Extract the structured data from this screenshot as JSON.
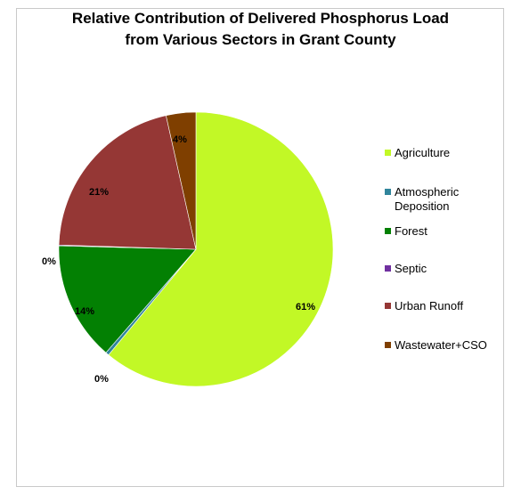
{
  "chart_data": {
    "type": "pie",
    "title_lines": [
      "Relative Contribution of Delivered Phosphorus Load",
      "from Various Sectors in Grant County"
    ],
    "start_angle_deg": 0,
    "direction": "clockwise",
    "legend_position": "right",
    "slices": [
      {
        "name": "Agriculture",
        "value": 61.0,
        "label": "61%",
        "color": "#c2f826"
      },
      {
        "name": "Atmospheric Deposition",
        "value": 0.4,
        "label": "0%",
        "color": "#31859c"
      },
      {
        "name": "Forest",
        "value": 14.0,
        "label": "14%",
        "color": "#038003"
      },
      {
        "name": "Septic",
        "value": 0.1,
        "label": "0%",
        "color": "#7030a0"
      },
      {
        "name": "Urban Runoff",
        "value": 21.0,
        "label": "21%",
        "color": "#953735"
      },
      {
        "name": "Wastewater+CSO",
        "value": 3.5,
        "label": "4%",
        "color": "#7f3f00"
      }
    ]
  },
  "legend": {
    "items": [
      {
        "lines": [
          "Agriculture"
        ],
        "color": "#c2f826"
      },
      {
        "lines": [
          "Atmospheric",
          "Deposition"
        ],
        "color": "#31859c"
      },
      {
        "lines": [
          "Forest"
        ],
        "color": "#038003"
      },
      {
        "lines": [
          "Septic"
        ],
        "color": "#7030a0"
      },
      {
        "lines": [
          "Urban Runoff"
        ],
        "color": "#953735"
      },
      {
        "lines": [
          "Wastewater+CSO"
        ],
        "color": "#7f3f00"
      }
    ]
  }
}
